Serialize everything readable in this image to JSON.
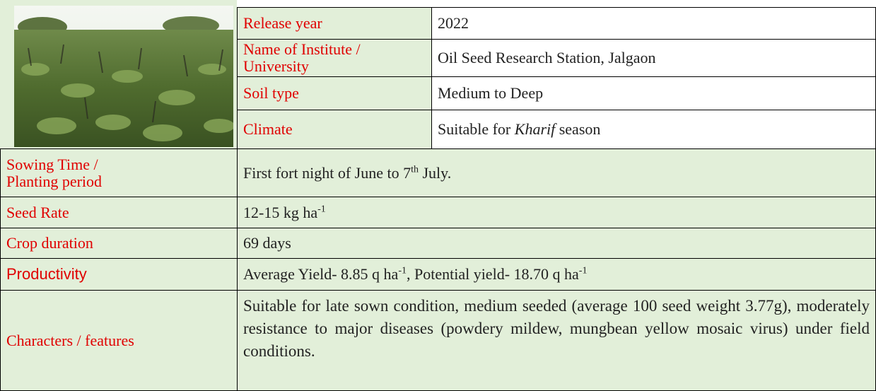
{
  "table": {
    "rows": [
      {
        "label": "Release year",
        "value": [
          "2022"
        ]
      },
      {
        "label": "Name of Institute / University",
        "value": [
          "Oil Seed Research Station, Jalgaon"
        ]
      },
      {
        "label": "Soil type",
        "value": [
          "Medium to Deep"
        ]
      },
      {
        "label": "Climate",
        "value": [
          "Suitable for ",
          "Kharif",
          " season"
        ]
      },
      {
        "label": "Sowing Time  / Planting  period",
        "value": [
          "First fort night of June to 7",
          "th",
          " July."
        ]
      },
      {
        "label": "Seed Rate",
        "value": [
          "12-15 kg ha",
          "-1"
        ]
      },
      {
        "label": "Crop duration",
        "value": [
          "69 days"
        ]
      },
      {
        "label": "Productivity",
        "value": [
          "Average Yield- 8.85 q ha",
          "-1",
          ", Potential yield- 18.70 q ha",
          "-1"
        ]
      },
      {
        "label": "Characters / features",
        "value": [
          "Suitable for late sown condition, medium seeded (average 100 seed weight 3.77g), moderately resistance to major diseases (powdery mildew, mungbean yellow mosaic virus) under field conditions."
        ]
      }
    ]
  }
}
